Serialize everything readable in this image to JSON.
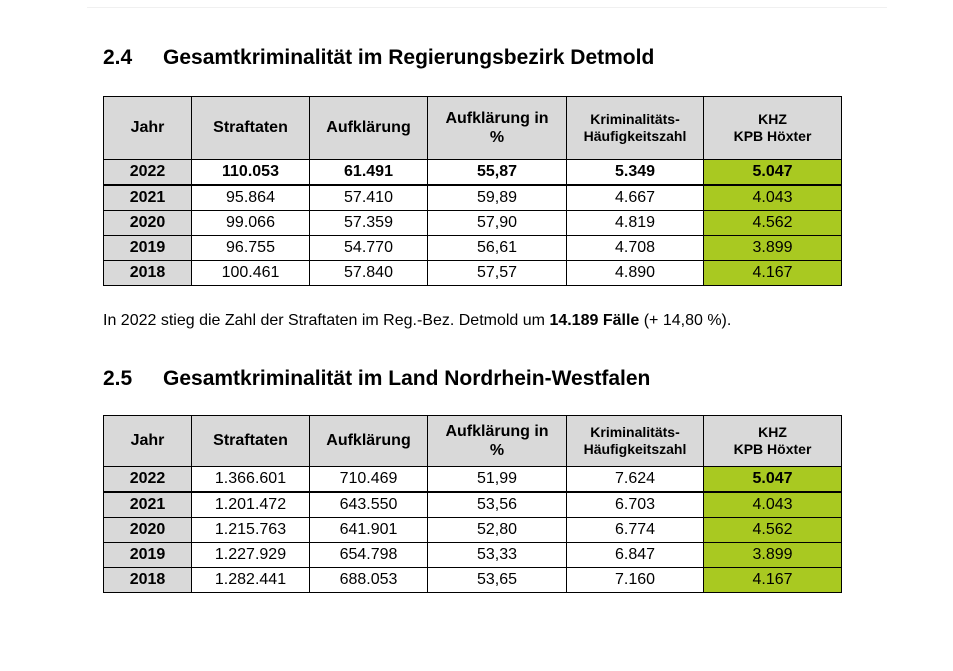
{
  "section_24": {
    "number": "2.4",
    "title": "Gesamtkriminalität im Regierungsbezirk Detmold",
    "headers": [
      "Jahr",
      "Straftaten",
      "Aufklärung",
      "Aufklärung in %",
      "Kriminalitäts-Häufigkeitszahl",
      "KHZ KPB Höxter"
    ],
    "header_lines": {
      "aufklaerung_pct": [
        "Aufklärung in",
        "%"
      ],
      "khz": [
        "Kriminalitäts-",
        "Häufigkeitszahl"
      ],
      "kpb": [
        "KHZ",
        "KPB Höxter"
      ]
    },
    "rows": [
      [
        "2022",
        "110.053",
        "61.491",
        "55,87",
        "5.349",
        "5.047"
      ],
      [
        "2021",
        "95.864",
        "57.410",
        "59,89",
        "4.667",
        "4.043"
      ],
      [
        "2020",
        "99.066",
        "57.359",
        "57,90",
        "4.819",
        "4.562"
      ],
      [
        "2019",
        "96.755",
        "54.770",
        "56,61",
        "4.708",
        "3.899"
      ],
      [
        "2018",
        "100.461",
        "57.840",
        "57,57",
        "4.890",
        "4.167"
      ]
    ],
    "summary": {
      "prefix": "In 2022 stieg die Zahl der Straftaten im Reg.-Bez. Detmold um ",
      "highlight": "14.189 Fälle",
      "suffix": " (+ 14,80 %)."
    }
  },
  "section_25": {
    "number": "2.5",
    "title": "Gesamtkriminalität im Land Nordrhein-Westfalen",
    "headers": [
      "Jahr",
      "Straftaten",
      "Aufklärung",
      "Aufklärung in %",
      "Kriminalitäts-Häufigkeitszahl",
      "KHZ KPB Höxter"
    ],
    "header_lines": {
      "aufklaerung_pct": [
        "Aufklärung in",
        "%"
      ],
      "khz": [
        "Kriminalitäts-",
        "Häufigkeitszahl"
      ],
      "kpb": [
        "KHZ",
        "KPB Höxter"
      ]
    },
    "rows": [
      [
        "2022",
        "1.366.601",
        "710.469",
        "51,99",
        "7.624",
        "5.047"
      ],
      [
        "2021",
        "1.201.472",
        "643.550",
        "53,56",
        "6.703",
        "4.043"
      ],
      [
        "2020",
        "1.215.763",
        "641.901",
        "52,80",
        "6.774",
        "4.562"
      ],
      [
        "2019",
        "1.227.929",
        "654.798",
        "53,33",
        "6.847",
        "3.899"
      ],
      [
        "2018",
        "1.282.441",
        "688.053",
        "53,65",
        "7.160",
        "4.167"
      ]
    ]
  },
  "colors": {
    "header_bg": "#d9d9d9",
    "highlight_green": "#a9c921",
    "border": "#000000"
  }
}
